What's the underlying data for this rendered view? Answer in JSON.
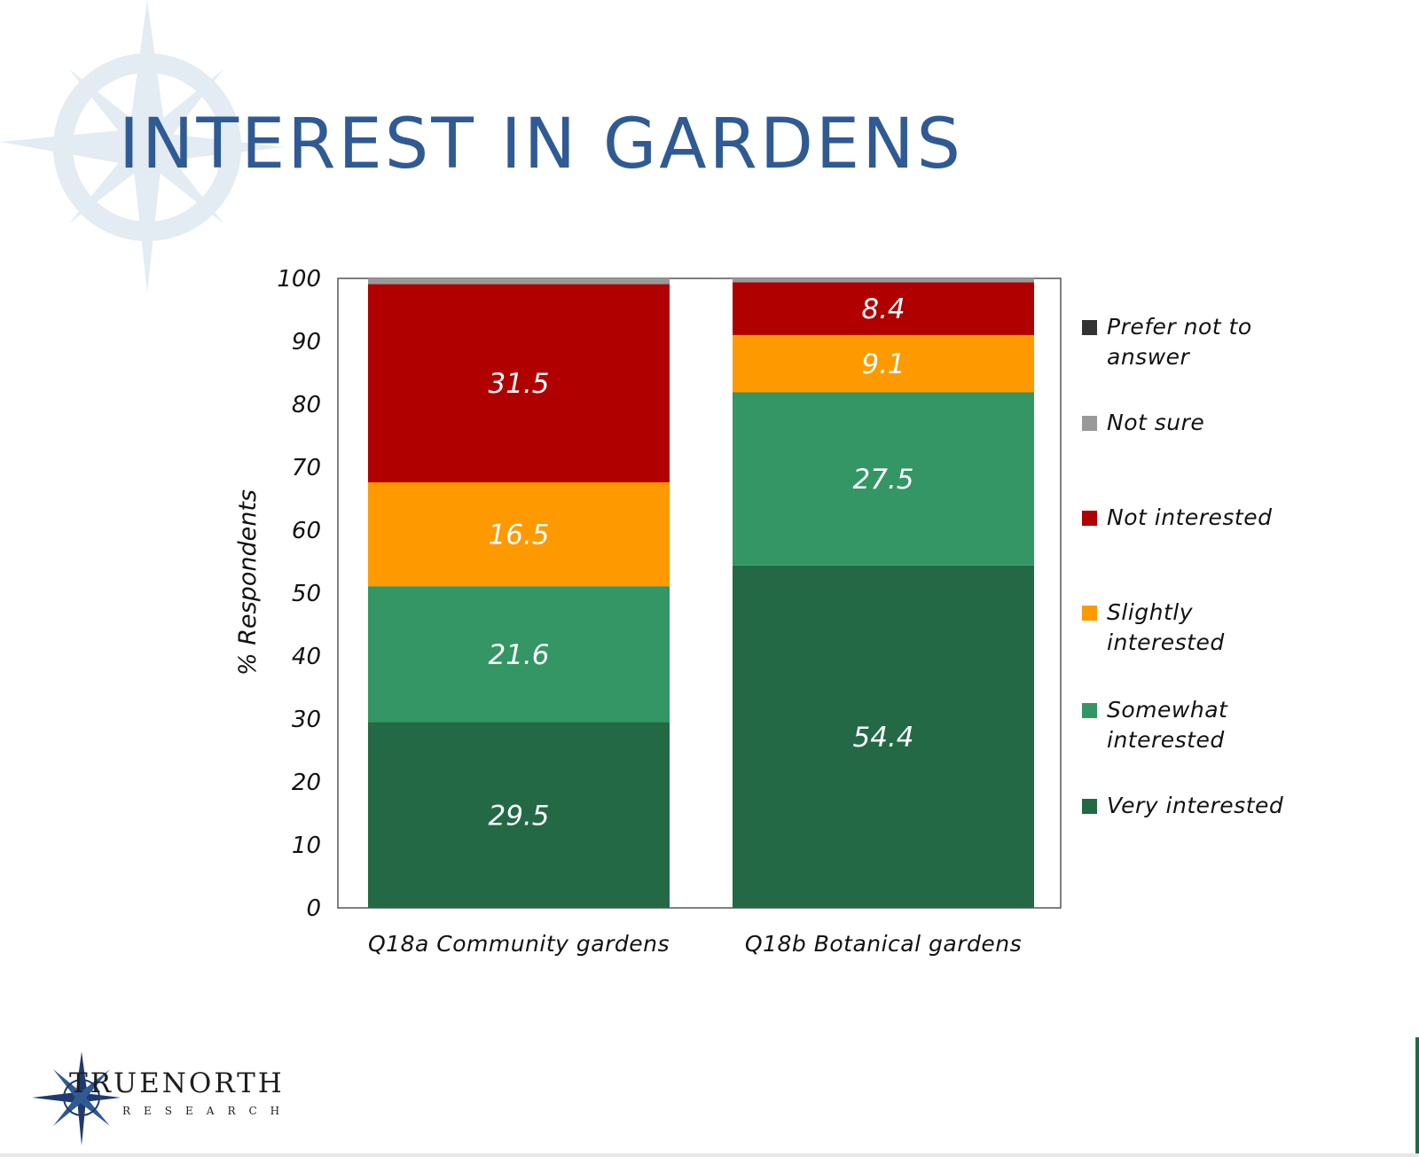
{
  "slide": {
    "title": "INTEREST IN GARDENS"
  },
  "colors": {
    "title": "#2f5a93",
    "very_interested": "#236945",
    "somewhat_interested": "#339664",
    "slightly_interested": "#ff9900",
    "not_interested": "#b00000",
    "not_sure": "#999999",
    "prefer_not_to_answer": "#333333"
  },
  "chart_data": {
    "type": "bar",
    "stacked": true,
    "title": "",
    "xlabel": "",
    "ylabel": "% Respondents",
    "ylim": [
      0,
      100
    ],
    "yticks": [
      0,
      10,
      20,
      30,
      40,
      50,
      60,
      70,
      80,
      90,
      100
    ],
    "grid": false,
    "legend_position": "right",
    "categories": [
      "Q18a Community gardens",
      "Q18b Botanical gardens"
    ],
    "series": [
      {
        "name": "Very interested",
        "color": "#236945",
        "values": [
          29.5,
          54.4
        ],
        "labels": [
          "29.5",
          "54.4"
        ]
      },
      {
        "name": "Somewhat interested",
        "color": "#339664",
        "values": [
          21.6,
          27.5
        ],
        "labels": [
          "21.6",
          "27.5"
        ]
      },
      {
        "name": "Slightly interested",
        "color": "#ff9900",
        "values": [
          16.5,
          9.1
        ],
        "labels": [
          "16.5",
          "9.1"
        ]
      },
      {
        "name": "Not interested",
        "color": "#b00000",
        "values": [
          31.5,
          8.4
        ],
        "labels": [
          "31.5",
          "8.4"
        ]
      },
      {
        "name": "Not sure",
        "color": "#999999",
        "values": [
          0.9,
          0.6
        ],
        "labels": [
          "",
          ""
        ]
      },
      {
        "name": "Prefer not to answer",
        "color": "#333333",
        "values": [
          0,
          0
        ],
        "labels": [
          "",
          ""
        ]
      }
    ]
  },
  "legend": {
    "items": [
      {
        "label": "Prefer not to answer",
        "color": "#333333"
      },
      {
        "label": "Not sure",
        "color": "#999999"
      },
      {
        "label": "Not interested",
        "color": "#b00000"
      },
      {
        "label": "Slightly interested",
        "color": "#ff9900"
      },
      {
        "label": "Somewhat interested",
        "color": "#339664"
      },
      {
        "label": "Very interested",
        "color": "#236945"
      }
    ]
  },
  "logo": {
    "wordmark": "TRUENORTH",
    "subtitle": "RESEARCH"
  }
}
